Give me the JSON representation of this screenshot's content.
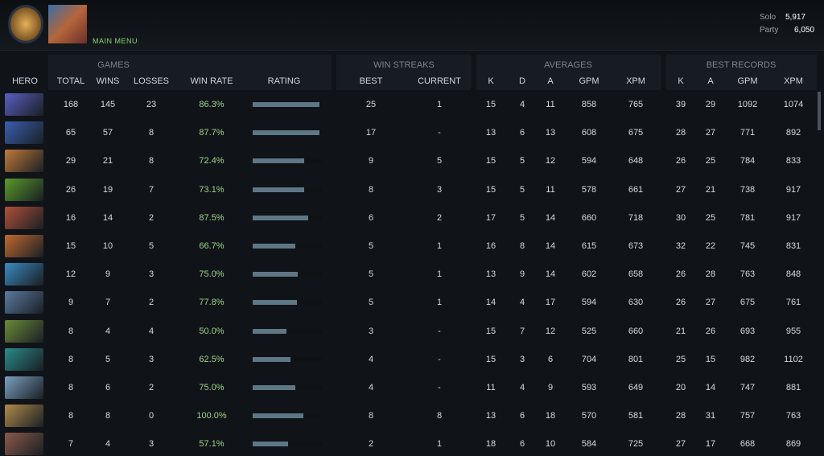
{
  "header": {
    "menu": "MAIN MENU",
    "solo": {
      "label": "Solo",
      "value": "5,917"
    },
    "party": {
      "label": "Party",
      "value": "6,050"
    }
  },
  "table": {
    "groups": [
      "GAMES",
      "WIN STREAKS",
      "AVERAGES",
      "BEST RECORDS"
    ],
    "columns": [
      "HERO",
      "TOTAL",
      "WINS",
      "LOSSES",
      "WIN RATE",
      "RATING",
      "BEST",
      "CURRENT",
      "K",
      "D",
      "A",
      "GPM",
      "XPM",
      "K",
      "A",
      "GPM",
      "XPM"
    ],
    "rating_range": [
      0,
      100
    ],
    "ratings": [
      97,
      97,
      74,
      74,
      80,
      62,
      65,
      64,
      49,
      55,
      62,
      73,
      51
    ],
    "rows": [
      [
        168,
        145,
        23,
        "86.3%",
        25,
        1,
        15,
        4,
        11,
        858,
        765,
        39,
        29,
        1092,
        1074
      ],
      [
        65,
        57,
        8,
        "87.7%",
        17,
        "-",
        13,
        6,
        13,
        608,
        675,
        28,
        27,
        771,
        892
      ],
      [
        29,
        21,
        8,
        "72.4%",
        9,
        5,
        15,
        5,
        12,
        594,
        648,
        26,
        25,
        784,
        833
      ],
      [
        26,
        19,
        7,
        "73.1%",
        8,
        3,
        15,
        5,
        11,
        578,
        661,
        27,
        21,
        738,
        917
      ],
      [
        16,
        14,
        2,
        "87.5%",
        6,
        2,
        17,
        5,
        14,
        660,
        718,
        30,
        25,
        781,
        917
      ],
      [
        15,
        10,
        5,
        "66.7%",
        5,
        1,
        16,
        8,
        14,
        615,
        673,
        32,
        22,
        745,
        831
      ],
      [
        12,
        9,
        3,
        "75.0%",
        5,
        1,
        13,
        9,
        14,
        602,
        658,
        26,
        28,
        763,
        848
      ],
      [
        9,
        7,
        2,
        "77.8%",
        5,
        1,
        14,
        4,
        17,
        594,
        630,
        26,
        27,
        675,
        761
      ],
      [
        8,
        4,
        4,
        "50.0%",
        3,
        "-",
        15,
        7,
        12,
        525,
        660,
        21,
        26,
        693,
        955
      ],
      [
        8,
        5,
        3,
        "62.5%",
        4,
        "-",
        15,
        3,
        6,
        704,
        801,
        25,
        15,
        982,
        1102
      ],
      [
        8,
        6,
        2,
        "75.0%",
        4,
        "-",
        11,
        4,
        9,
        593,
        649,
        20,
        14,
        747,
        881
      ],
      [
        8,
        8,
        0,
        "100.0%",
        8,
        8,
        13,
        6,
        18,
        570,
        581,
        28,
        31,
        757,
        763
      ],
      [
        7,
        4,
        3,
        "57.1%",
        2,
        1,
        18,
        6,
        10,
        584,
        725,
        27,
        17,
        668,
        869
      ]
    ]
  }
}
